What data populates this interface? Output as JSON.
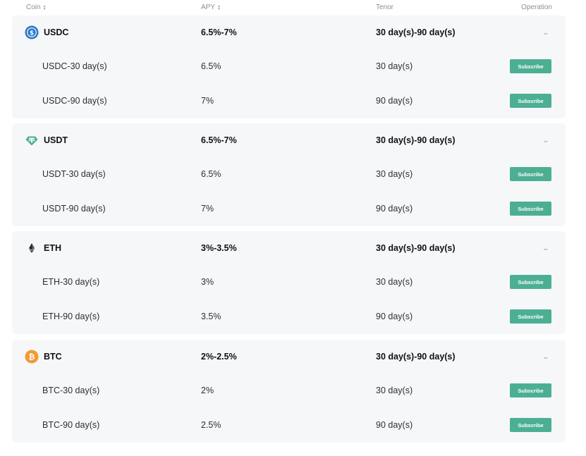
{
  "header": {
    "coin": "Coin",
    "apy": "APY",
    "tenor": "Tenor",
    "operation": "Operation"
  },
  "groups": [
    {
      "coin": "USDC",
      "icon": "usdc-icon",
      "apy": "6.5%-7%",
      "tenor": "30 day(s)-90 day(s)",
      "products": [
        {
          "label": "USDC-30 day(s)",
          "apy": "6.5%",
          "tenor": "30 day(s)",
          "action": "Subscribe"
        },
        {
          "label": "USDC-90 day(s)",
          "apy": "7%",
          "tenor": "90 day(s)",
          "action": "Subscribe"
        }
      ]
    },
    {
      "coin": "USDT",
      "icon": "usdt-icon",
      "apy": "6.5%-7%",
      "tenor": "30 day(s)-90 day(s)",
      "products": [
        {
          "label": "USDT-30 day(s)",
          "apy": "6.5%",
          "tenor": "30 day(s)",
          "action": "Subscribe"
        },
        {
          "label": "USDT-90 day(s)",
          "apy": "7%",
          "tenor": "90 day(s)",
          "action": "Subscribe"
        }
      ]
    },
    {
      "coin": "ETH",
      "icon": "eth-icon",
      "apy": "3%-3.5%",
      "tenor": "30 day(s)-90 day(s)",
      "products": [
        {
          "label": "ETH-30 day(s)",
          "apy": "3%",
          "tenor": "30 day(s)",
          "action": "Subscribe"
        },
        {
          "label": "ETH-90 day(s)",
          "apy": "3.5%",
          "tenor": "90 day(s)",
          "action": "Subscribe"
        }
      ]
    },
    {
      "coin": "BTC",
      "icon": "btc-icon",
      "apy": "2%-2.5%",
      "tenor": "30 day(s)-90 day(s)",
      "products": [
        {
          "label": "BTC-30 day(s)",
          "apy": "2%",
          "tenor": "30 day(s)",
          "action": "Subscribe"
        },
        {
          "label": "BTC-90 day(s)",
          "apy": "2.5%",
          "tenor": "90 day(s)",
          "action": "Subscribe"
        }
      ]
    }
  ],
  "colors": {
    "subscribe_button": "#4caf93",
    "row_background": "#f6f7f9",
    "usdc": "#2775ca",
    "usdt": "#4caf93",
    "eth": "#222222",
    "btc": "#f39a35"
  }
}
